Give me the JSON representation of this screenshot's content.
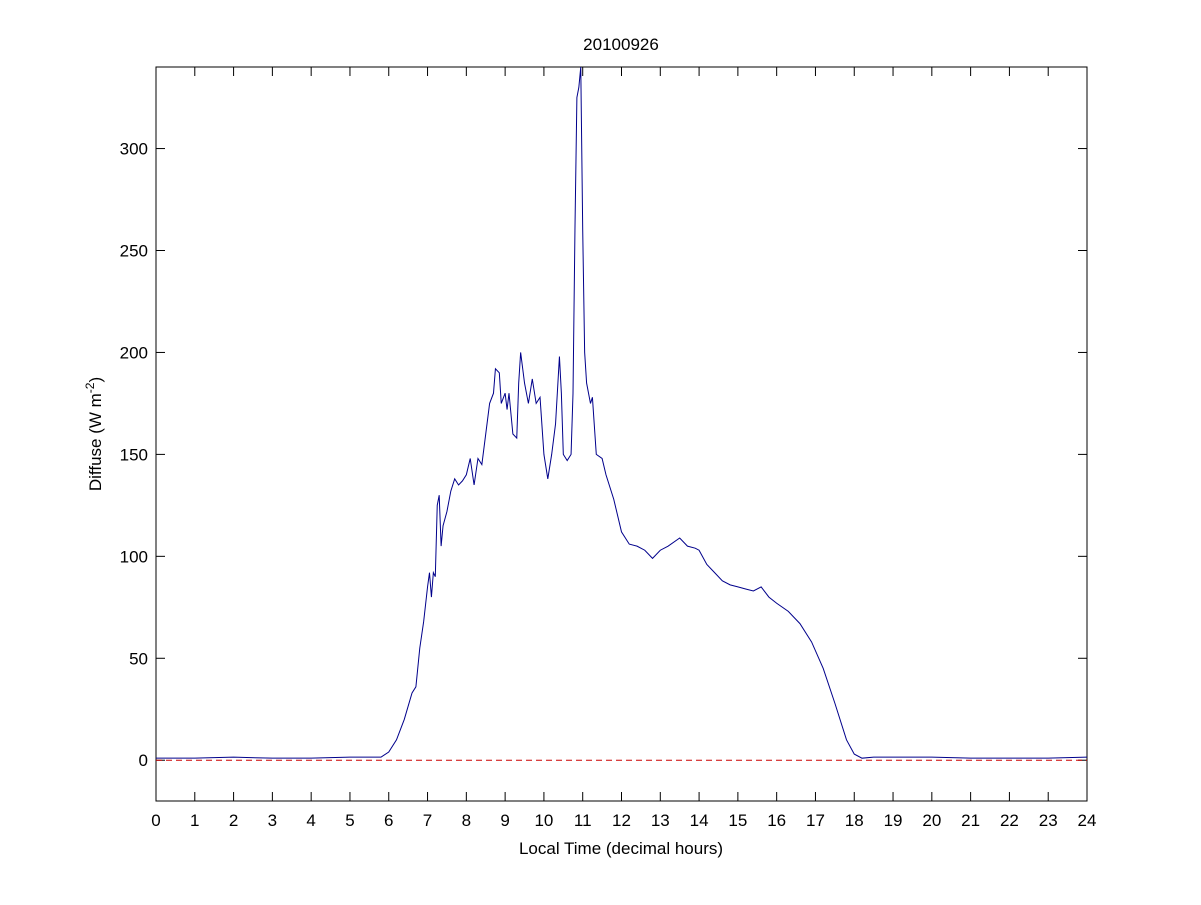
{
  "chart_data": {
    "type": "line",
    "title": "20100926",
    "xlabel": "Local Time (decimal hours)",
    "ylabel": {
      "text": "Diffuse (W m",
      "superscript": "-2",
      "suffix": ")"
    },
    "xlim": [
      0,
      24
    ],
    "xticks": [
      0,
      1,
      2,
      3,
      4,
      5,
      6,
      7,
      8,
      9,
      10,
      11,
      12,
      13,
      14,
      15,
      16,
      17,
      18,
      19,
      20,
      21,
      22,
      23,
      24
    ],
    "ylim": [
      -20,
      340
    ],
    "yticks": [
      0,
      50,
      100,
      150,
      200,
      250,
      300
    ],
    "reference_line": {
      "value": 0,
      "color": "#cc0000",
      "style": "dashed"
    },
    "series": [
      {
        "color": "#00008b",
        "x": [
          0,
          1,
          2,
          3,
          4,
          5,
          5.8,
          6.0,
          6.2,
          6.4,
          6.6,
          6.7,
          6.8,
          6.9,
          7.0,
          7.05,
          7.1,
          7.15,
          7.2,
          7.25,
          7.3,
          7.35,
          7.4,
          7.5,
          7.6,
          7.7,
          7.8,
          7.9,
          8.0,
          8.1,
          8.2,
          8.3,
          8.4,
          8.5,
          8.6,
          8.7,
          8.75,
          8.85,
          8.9,
          9.0,
          9.05,
          9.1,
          9.2,
          9.3,
          9.35,
          9.4,
          9.5,
          9.6,
          9.7,
          9.8,
          9.9,
          10.0,
          10.1,
          10.2,
          10.3,
          10.4,
          10.45,
          10.5,
          10.6,
          10.7,
          10.75,
          10.8,
          10.85,
          10.9,
          10.95,
          11.0,
          11.05,
          11.1,
          11.2,
          11.25,
          11.35,
          11.5,
          11.6,
          11.8,
          12.0,
          12.2,
          12.4,
          12.6,
          12.8,
          13.0,
          13.2,
          13.5,
          13.7,
          13.9,
          14.0,
          14.2,
          14.4,
          14.6,
          14.8,
          15.0,
          15.2,
          15.4,
          15.6,
          15.8,
          16.0,
          16.3,
          16.6,
          16.9,
          17.2,
          17.5,
          17.8,
          18.0,
          18.2,
          18.5,
          19,
          20,
          21,
          22,
          23,
          24
        ],
        "values": [
          1,
          1,
          1.5,
          1,
          1,
          1.5,
          1.5,
          4,
          10,
          20,
          33,
          36,
          55,
          68,
          85,
          92,
          80,
          92,
          90,
          125,
          130,
          105,
          115,
          122,
          132,
          138,
          135,
          137,
          140,
          148,
          135,
          148,
          145,
          160,
          175,
          180,
          192,
          190,
          175,
          180,
          172,
          180,
          160,
          158,
          185,
          200,
          185,
          175,
          187,
          175,
          178,
          150,
          138,
          150,
          165,
          198,
          180,
          150,
          147,
          150,
          180,
          260,
          325,
          330,
          340,
          260,
          200,
          185,
          175,
          178,
          150,
          148,
          140,
          128,
          112,
          106,
          105,
          103,
          99,
          103,
          105,
          109,
          105,
          104,
          103,
          96,
          92,
          88,
          86,
          85,
          84,
          83,
          85,
          80,
          77,
          73,
          67,
          58,
          45,
          28,
          10,
          3,
          1,
          1.5,
          1.5,
          1.5,
          1,
          1,
          1,
          1.5
        ]
      }
    ]
  }
}
